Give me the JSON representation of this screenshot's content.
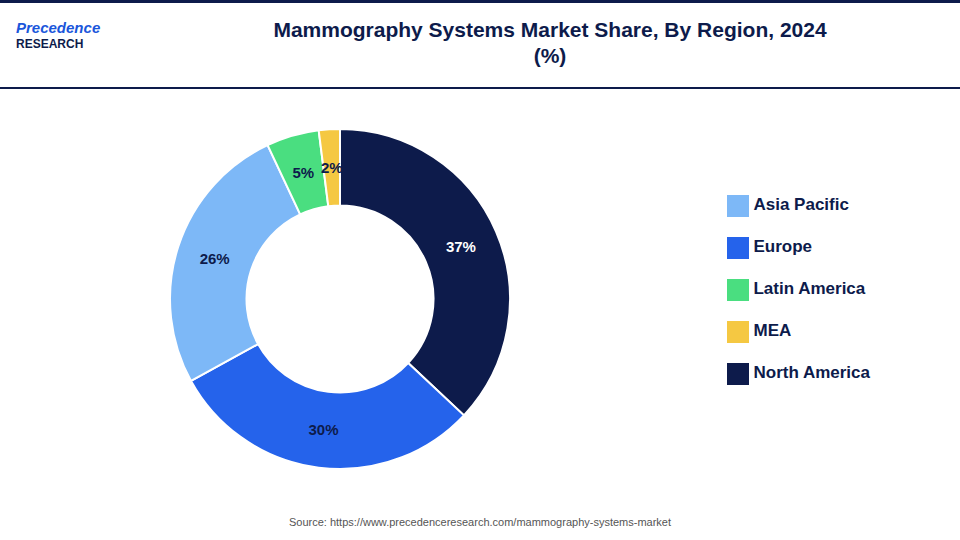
{
  "chart_data": {
    "type": "pie",
    "title": "Mammography Systems Market Share, By Region, 2024\n(%)",
    "categories": [
      "North America",
      "Europe",
      "Asia Pacific",
      "Latin America",
      "MEA"
    ],
    "values": [
      37,
      30,
      26,
      5,
      2
    ],
    "value_labels": [
      "37%",
      "30%",
      "26%",
      "5%",
      "2%"
    ],
    "colors": [
      "#0d1b4b",
      "#2563eb",
      "#7db8f7",
      "#4ade80",
      "#f5c842"
    ],
    "data_labels": true,
    "legend": "right",
    "annotations": [
      "Precedence",
      "RESEARCH",
      "Source: https://www.precedenceresearch.com/mammography-systems-market"
    ]
  }
}
